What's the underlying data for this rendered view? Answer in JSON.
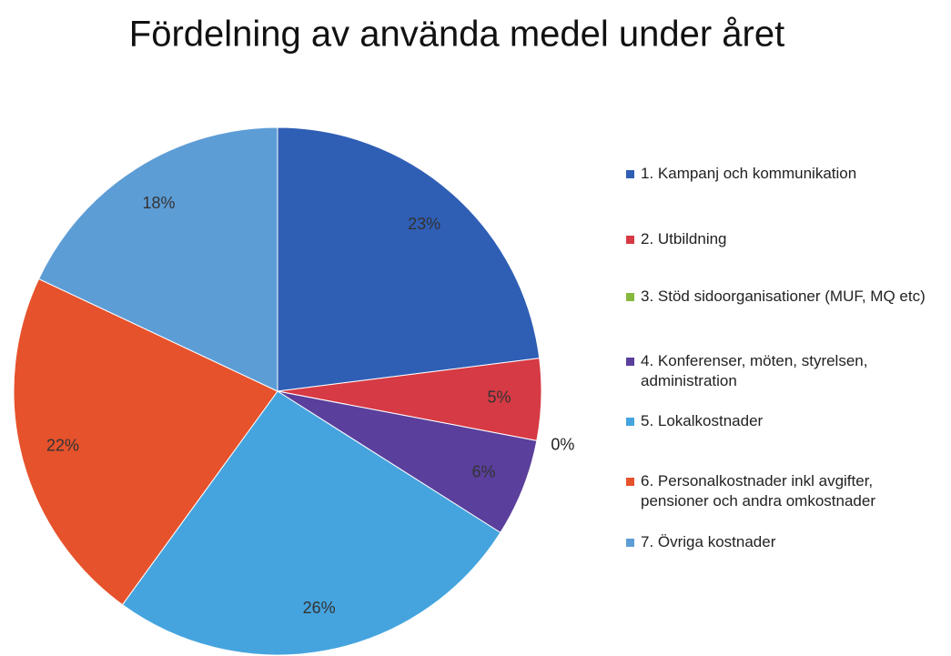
{
  "chart_data": {
    "type": "pie",
    "title": "Fördelning av använda medel under året",
    "categories": [
      "1. Kampanj och kommunikation",
      "2. Utbildning",
      "3. Stöd  sidoorganisationer (MUF, MQ etc)",
      "4. Konferenser, möten, styrelsen, administration",
      "5. Lokalkostnader",
      "6. Personalkostnader inkl avgifter, pensioner och andra omkostnader",
      "7. Övriga kostnader"
    ],
    "values": [
      23,
      5,
      0,
      6,
      26,
      22,
      18
    ],
    "value_labels": [
      "23%",
      "5%",
      "0%",
      "6%",
      "26%",
      "22%",
      "18%"
    ],
    "colors": [
      "#2f5eb5",
      "#d63a44",
      "#86b83e",
      "#5a3f9c",
      "#45a4de",
      "#e6522c",
      "#5d9dd6"
    ]
  }
}
